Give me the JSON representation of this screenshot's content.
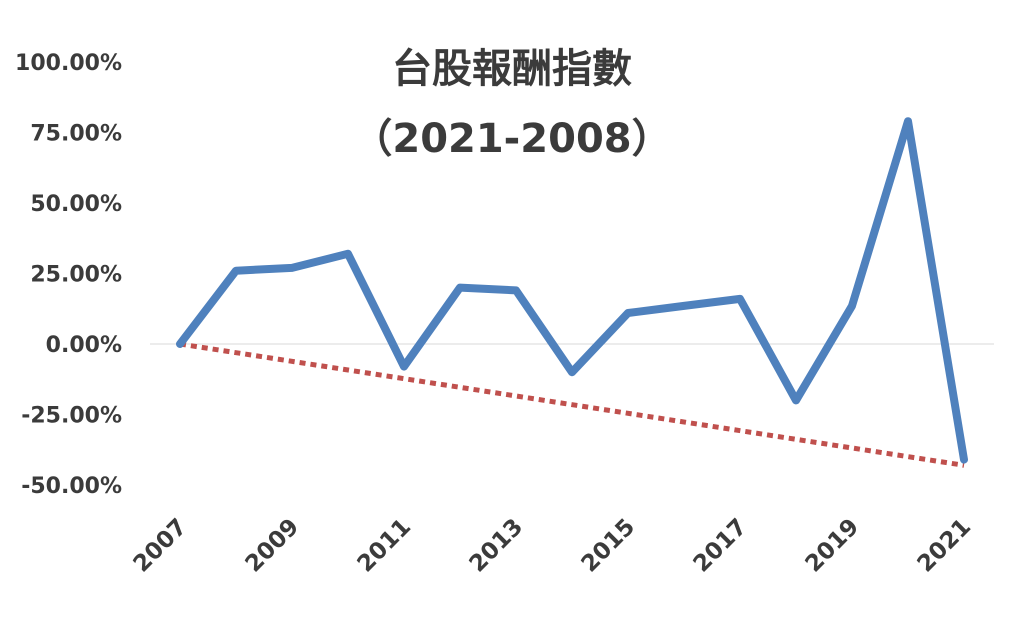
{
  "chart_data": {
    "type": "line",
    "title": "台股報酬指數",
    "subtitle": "（2021-2008）",
    "ylim": [
      -0.5,
      1.0
    ],
    "yticks": [
      "100.00%",
      "75.00%",
      "50.00%",
      "25.00%",
      "0.00%",
      "-25.00%",
      "-50.00%"
    ],
    "ytick_values": [
      1.0,
      0.75,
      0.5,
      0.25,
      0.0,
      -0.25,
      -0.5
    ],
    "xticks": [
      "2007",
      "2009",
      "2011",
      "2013",
      "2015",
      "2017",
      "2019",
      "2021"
    ],
    "x": [
      2007,
      2008,
      2009,
      2010,
      2011,
      2012,
      2013,
      2014,
      2015,
      2016,
      2017,
      2018,
      2019,
      2020,
      2021
    ],
    "grid": false,
    "series": [
      {
        "values": [
          0.0,
          0.26,
          0.27,
          0.32,
          -0.08,
          0.2,
          0.19,
          -0.1,
          0.11,
          0.135,
          0.16,
          -0.2,
          0.135,
          0.79,
          -0.41
        ],
        "color": "#4f81bd",
        "style": "solid"
      },
      {
        "x": [
          2007,
          2021
        ],
        "values": [
          0.0,
          -0.43
        ],
        "color": "#c0504d",
        "style": "dotted"
      }
    ]
  }
}
